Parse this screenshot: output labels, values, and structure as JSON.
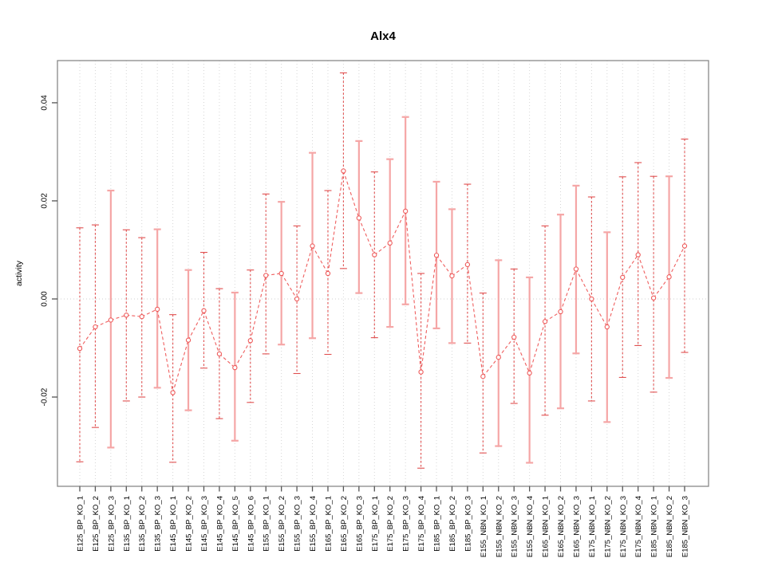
{
  "title": "Alx4",
  "chart_data": {
    "type": "line",
    "subtype": "points-with-error-bars",
    "title": "Alx4",
    "xlabel": "",
    "ylabel": "activity",
    "legend_position": "none",
    "grid": {
      "vertical": "dotted line at every category",
      "horizontal": "dotted line at y=0 only"
    },
    "yticks": [
      -0.02,
      0,
      0.02,
      0.04
    ],
    "ytick_labels": [
      "-0.02",
      "0.00",
      "0.02",
      "0.04"
    ],
    "ylim": [
      -0.0382,
      0.0486
    ],
    "categories": [
      "E125_BP_KO_1",
      "E125_BP_KO_2",
      "E125_BP_KO_3",
      "E135_BP_KO_1",
      "E135_BP_KO_2",
      "E135_BP_KO_3",
      "E145_BP_KO_1",
      "E145_BP_KO_2",
      "E145_BP_KO_3",
      "E145_BP_KO_4",
      "E145_BP_KO_5",
      "E145_BP_KO_6",
      "E155_BP_KO_1",
      "E155_BP_KO_2",
      "E155_BP_KO_3",
      "E155_BP_KO_4",
      "E165_BP_KO_1",
      "E165_BP_KO_2",
      "E165_BP_KO_3",
      "E175_BP_KO_1",
      "E175_BP_KO_2",
      "E175_BP_KO_3",
      "E175_BP_KO_4",
      "E185_BP_KO_1",
      "E185_BP_KO_2",
      "E185_BP_KO_3",
      "E155_NBN_KO_1",
      "E155_NBN_KO_2",
      "E155_NBN_KO_3",
      "E155_NBN_KO_4",
      "E165_NBN_KO_1",
      "E165_NBN_KO_2",
      "E165_NBN_KO_3",
      "E175_NBN_KO_1",
      "E175_NBN_KO_2",
      "E175_NBN_KO_3",
      "E175_NBN_KO_4",
      "E185_NBN_KO_1",
      "E185_NBN_KO_2",
      "E185_NBN_KO_3"
    ],
    "series": [
      {
        "name": "activity",
        "values": [
          -0.0101,
          -0.0057,
          -0.0043,
          -0.0033,
          -0.0036,
          -0.0021,
          -0.0191,
          -0.0084,
          -0.0024,
          -0.0112,
          -0.014,
          -0.0085,
          0.0048,
          0.0052,
          0.0,
          0.0108,
          0.0052,
          0.0261,
          0.0165,
          0.009,
          0.0114,
          0.0179,
          -0.0149,
          0.0089,
          0.0047,
          0.007,
          -0.0158,
          -0.0119,
          -0.0078,
          -0.0151,
          -0.0046,
          -0.0026,
          0.0061,
          0.0,
          -0.0057,
          0.0044,
          0.009,
          0.0002,
          0.0045,
          0.0108
        ],
        "ci_lower": [
          -0.0332,
          -0.0262,
          -0.0303,
          -0.0208,
          -0.02,
          -0.0181,
          -0.0333,
          -0.0227,
          -0.0141,
          -0.0244,
          -0.0289,
          -0.0211,
          -0.0112,
          -0.0093,
          -0.0152,
          -0.008,
          -0.0113,
          0.0062,
          0.0012,
          -0.0079,
          -0.0057,
          -0.0011,
          -0.0345,
          -0.006,
          -0.009,
          -0.009,
          -0.0314,
          -0.03,
          -0.0213,
          -0.0334,
          -0.0237,
          -0.0223,
          -0.0111,
          -0.0208,
          -0.0251,
          -0.016,
          -0.0095,
          -0.019,
          -0.0161,
          -0.0109
        ],
        "ci_upper": [
          0.0145,
          0.0151,
          0.0221,
          0.0141,
          0.0125,
          0.0142,
          -0.0032,
          0.0059,
          0.0095,
          0.0021,
          0.0013,
          0.0059,
          0.0214,
          0.0198,
          0.0149,
          0.0298,
          0.0221,
          0.0461,
          0.0322,
          0.0259,
          0.0285,
          0.0371,
          0.0052,
          0.0239,
          0.0183,
          0.0234,
          0.0012,
          0.0079,
          0.0061,
          0.0044,
          0.0149,
          0.0172,
          0.0231,
          0.0208,
          0.0136,
          0.0249,
          0.0278,
          0.025,
          0.025,
          0.0326
        ],
        "bar_styles": [
          "dashed",
          "dashed",
          "solid",
          "dashed",
          "dashed",
          "solid",
          "dashed",
          "solid",
          "dashed",
          "dashed",
          "solid",
          "dashed",
          "dashed",
          "solid",
          "dashed",
          "solid",
          "dashed",
          "dashed",
          "solid",
          "dashed",
          "solid",
          "solid",
          "dashed",
          "solid",
          "solid",
          "dashed",
          "dashed",
          "solid",
          "dashed",
          "solid",
          "dashed",
          "solid",
          "solid",
          "dashed",
          "solid",
          "dashed",
          "dashed",
          "dashed",
          "solid",
          "dashed"
        ]
      }
    ],
    "colors": {
      "point_red": "#ee5a5a",
      "series_line_red": "#ef5f5f",
      "dashed_bar_red": "#e04f4f",
      "solid_bar_pink": "#f5a6a6",
      "grid_gray": "#d6d6d6",
      "zero_line_gray": "#cfcfcf",
      "axis_box_gray": "#888888",
      "tick_gray": "#555555",
      "text_black": "#000000"
    }
  }
}
